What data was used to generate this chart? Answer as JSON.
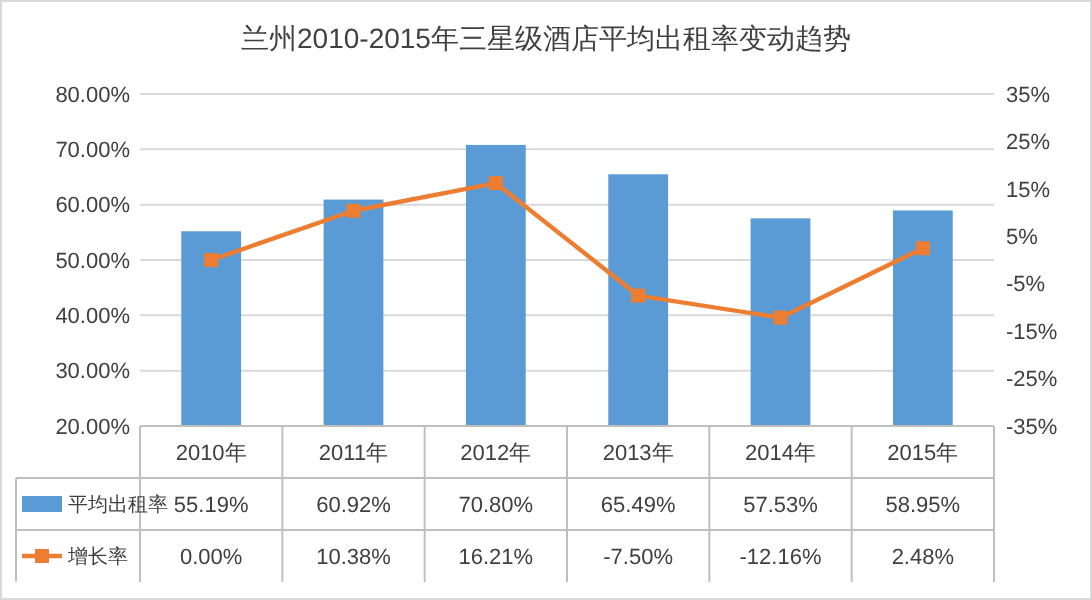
{
  "chart_data": {
    "type": "bar",
    "title": "兰州2010-2015年三星级酒店平均出租率变动趋势",
    "categories": [
      "2010年",
      "2011年",
      "2012年",
      "2013年",
      "2014年",
      "2015年"
    ],
    "series": [
      {
        "name": "平均出租率",
        "color": "#5b9bd5",
        "values": [
          55.19,
          60.92,
          70.8,
          65.49,
          57.53,
          58.95
        ],
        "value_labels": [
          "55.19%",
          "60.92%",
          "70.80%",
          "65.49%",
          "57.53%",
          "58.95%"
        ]
      },
      {
        "name": "增长率",
        "type": "line",
        "axis": "y2",
        "color": "#ed7d31",
        "marker": "square",
        "values": [
          0.0,
          10.38,
          16.21,
          -7.5,
          -12.16,
          2.48
        ],
        "value_labels": [
          "0.00%",
          "10.38%",
          "16.21%",
          "-7.50%",
          "-12.16%",
          "2.48%"
        ]
      }
    ],
    "ylim": [
      20,
      80
    ],
    "yticks": [
      {
        "value": 20,
        "label": "20.00%"
      },
      {
        "value": 30,
        "label": "30.00%"
      },
      {
        "value": 40,
        "label": "40.00%"
      },
      {
        "value": 50,
        "label": "50.00%"
      },
      {
        "value": 60,
        "label": "60.00%"
      },
      {
        "value": 70,
        "label": "70.00%"
      },
      {
        "value": 80,
        "label": "80.00%"
      }
    ],
    "y2lim": [
      -35,
      35
    ],
    "y2ticks": [
      {
        "value": -35,
        "label": "-35%"
      },
      {
        "value": -25,
        "label": "-25%"
      },
      {
        "value": -15,
        "label": "-15%"
      },
      {
        "value": -5,
        "label": "-5%"
      },
      {
        "value": 5,
        "label": "5%"
      },
      {
        "value": 15,
        "label": "15%"
      },
      {
        "value": 25,
        "label": "25%"
      },
      {
        "value": 35,
        "label": "35%"
      }
    ],
    "grid": "y",
    "legend": "bottom"
  }
}
